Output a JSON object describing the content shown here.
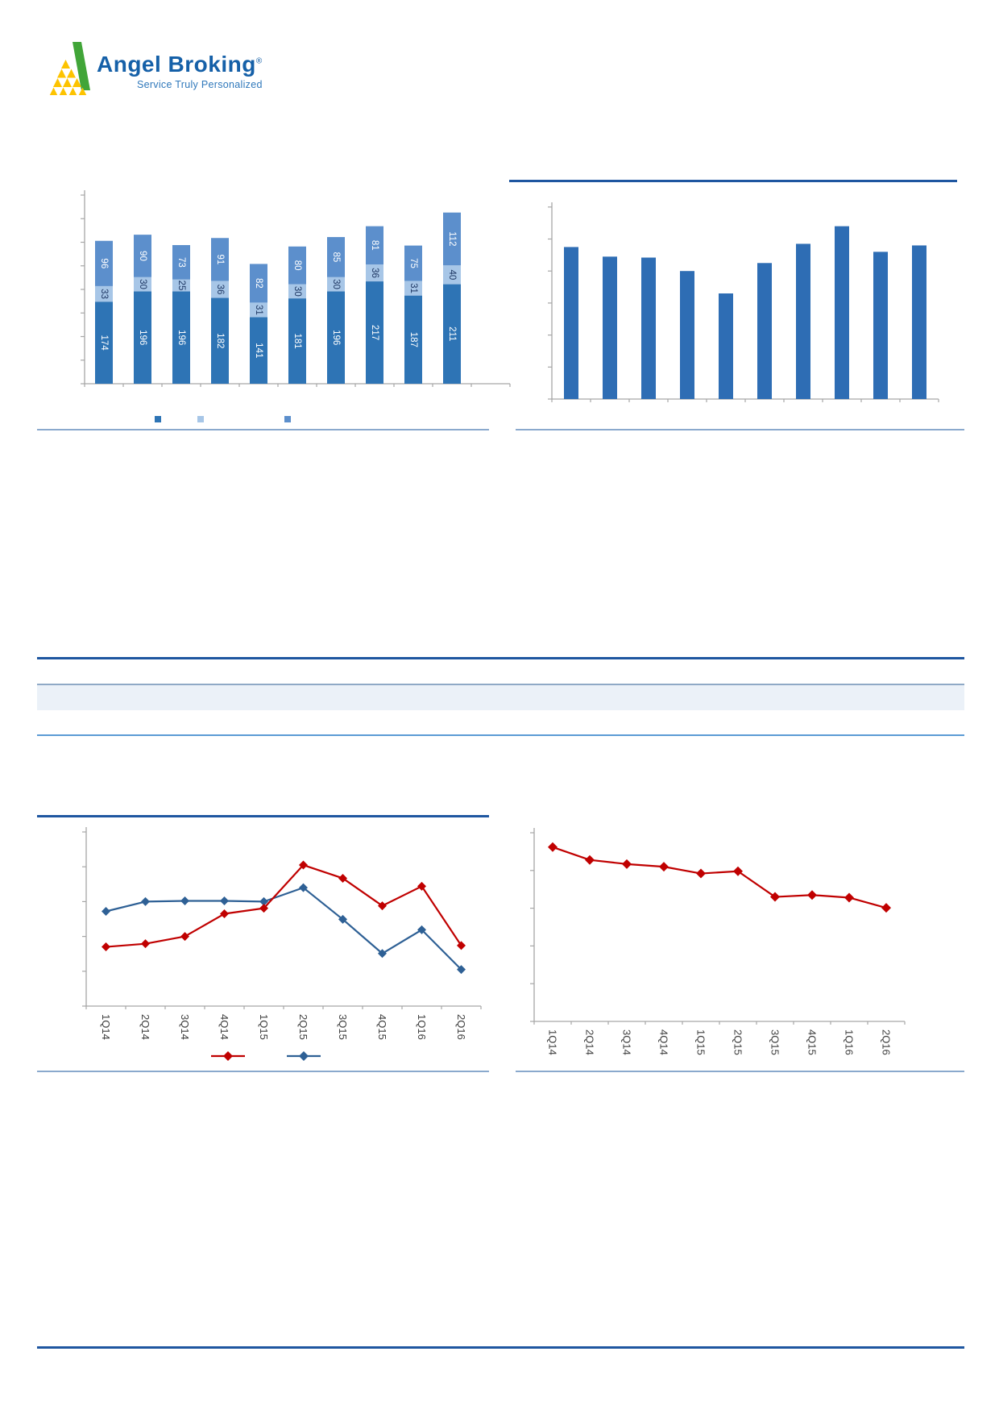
{
  "brand": {
    "name": "Angel Broking",
    "registered_mark": "®",
    "tagline": "Service Truly Personalized",
    "logo_colors": {
      "green": "#41A538",
      "yellow": "#FDC300",
      "name_blue": "#1560A8",
      "tagline_blue": "#2F78BB"
    }
  },
  "rules": {
    "title_rule_color": "#1E56A0",
    "source_rule_color": "#8AA9CD",
    "table_header_fill": "#EBF1F8",
    "table_header_border": "#8FA9C6",
    "table_row_rule_color": "#5B9BD5",
    "footer_rule_color": "#1E56A0"
  },
  "axis_style": {
    "line_color": "#A6A6A6",
    "label_color": "#404040"
  },
  "charts": {
    "top_left": {
      "chart_data": {
        "type": "bar",
        "stacked": true,
        "title": "",
        "xlabel": "",
        "ylabel": "",
        "categories": [
          "",
          "",
          "",
          "",
          "",
          "",
          "",
          "",
          "",
          ""
        ],
        "series": [
          {
            "name": "segment-bottom",
            "color": "#2E74B5",
            "label_color": "#FFFFFF",
            "values": [
              174,
              196,
              196,
              182,
              141,
              181,
              196,
              217,
              187,
              211
            ]
          },
          {
            "name": "segment-middle",
            "color": "#A7C6E7",
            "label_color": "#1F3864",
            "values": [
              33,
              30,
              25,
              36,
              31,
              30,
              30,
              36,
              31,
              40
            ]
          },
          {
            "name": "segment-top",
            "color": "#5C8FCC",
            "label_color": "#FFFFFF",
            "values": [
              96,
              90,
              73,
              91,
              82,
              80,
              85,
              81,
              75,
              112
            ]
          }
        ],
        "ylim": [
          0,
          400
        ],
        "grid": false,
        "axis_tick_labels_visible": false,
        "legend_position": "bottom",
        "legend_labels": [
          "",
          "",
          ""
        ],
        "legend_colors": [
          "#2E74B5",
          "#A7C6E7",
          "#5C8FCC"
        ]
      }
    },
    "top_right": {
      "chart_data": {
        "type": "bar",
        "stacked": false,
        "title": "",
        "xlabel": "",
        "ylabel": "",
        "categories": [
          "",
          "",
          "",
          "",
          "",
          "",
          "",
          "",
          "",
          ""
        ],
        "series": [
          {
            "name": "bars",
            "color": "#2E6DB4",
            "values_estimated_ticks": [
              4.75,
              4.45,
              4.42,
              4.0,
              3.3,
              4.25,
              4.85,
              5.4,
              4.6,
              4.8
            ]
          }
        ],
        "ylim": [
          0,
          6
        ],
        "grid": false,
        "axis_tick_labels_visible": false,
        "note": "no data or axis labels visible; values estimated from bar heights in y-tick units"
      }
    },
    "bottom_left": {
      "chart_data": {
        "type": "line",
        "title": "",
        "xlabel": "",
        "ylabel": "",
        "categories": [
          "1Q14",
          "2Q14",
          "3Q14",
          "4Q14",
          "1Q15",
          "2Q15",
          "3Q15",
          "4Q15",
          "1Q16",
          "2Q16"
        ],
        "series": [
          {
            "name": "red-series",
            "color": "#C00000",
            "marker": "diamond",
            "values_estimated_ticks": [
              1.7,
              1.79,
              2.0,
              2.65,
              2.81,
              4.05,
              3.67,
              2.88,
              3.44,
              1.74
            ]
          },
          {
            "name": "blue-series",
            "color": "#2E6095",
            "marker": "diamond",
            "values_estimated_ticks": [
              2.72,
              3.0,
              3.02,
              3.02,
              3.0,
              3.4,
              2.49,
              1.51,
              2.19,
              1.05
            ]
          }
        ],
        "ylim": [
          0,
          5
        ],
        "grid": false,
        "axis_tick_labels_visible": false,
        "legend_position": "bottom",
        "legend_labels": [
          "",
          ""
        ],
        "note": "y-axis labels not visible; values estimated in y-tick units"
      }
    },
    "bottom_right": {
      "chart_data": {
        "type": "line",
        "title": "",
        "xlabel": "",
        "ylabel": "",
        "categories": [
          "1Q14",
          "2Q14",
          "3Q14",
          "4Q14",
          "1Q15",
          "2Q15",
          "3Q15",
          "4Q15",
          "1Q16",
          "2Q16"
        ],
        "series": [
          {
            "name": "red-series",
            "color": "#C00000",
            "marker": "diamond",
            "values_estimated_ticks": [
              4.62,
              4.28,
              4.17,
              4.1,
              3.92,
              3.98,
              3.3,
              3.35,
              3.28,
              3.01
            ]
          }
        ],
        "ylim": [
          0,
          5
        ],
        "grid": false,
        "axis_tick_labels_visible": false,
        "note": "y-axis labels not visible; values estimated in y-tick units"
      }
    }
  }
}
